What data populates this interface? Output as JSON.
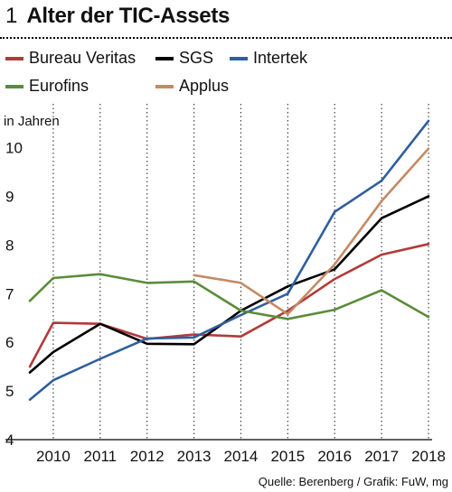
{
  "header": {
    "number": "1",
    "title": "Alter der TIC-Assets"
  },
  "footer": {
    "source": "Quelle: Berenberg / Grafik: FuW, mg"
  },
  "chart_data": {
    "type": "line",
    "ylabel": "in Jahren",
    "xlabel": "",
    "x": [
      2009.5,
      2010,
      2011,
      2012,
      2013,
      2014,
      2015,
      2016,
      2017,
      2018
    ],
    "xticks": [
      "2010",
      "2011",
      "2012",
      "2013",
      "2014",
      "2015",
      "2016",
      "2017",
      "2018"
    ],
    "yticks": [
      "4",
      "5",
      "6",
      "7",
      "8",
      "9",
      "10"
    ],
    "ylim": [
      4,
      10.9
    ],
    "grid": "vertical dotted",
    "legend_position": "top",
    "series": [
      {
        "name": "Bureau Veritas",
        "color": "#b23a3a",
        "values": [
          5.5,
          6.4,
          6.38,
          6.07,
          6.16,
          6.12,
          6.65,
          7.3,
          7.8,
          8.02
        ]
      },
      {
        "name": "SGS",
        "color": "#000000",
        "values": [
          5.38,
          5.8,
          6.38,
          5.97,
          5.96,
          6.65,
          7.15,
          7.5,
          8.55,
          9.0
        ]
      },
      {
        "name": "Intertek",
        "color": "#2f5f9e",
        "values": [
          4.82,
          5.22,
          5.66,
          6.08,
          6.1,
          6.56,
          7.0,
          8.68,
          9.32,
          10.55
        ]
      },
      {
        "name": "Eurofins",
        "color": "#5b8c3a",
        "values": [
          6.85,
          7.32,
          7.4,
          7.22,
          7.25,
          6.65,
          6.48,
          6.67,
          7.07,
          6.52
        ]
      },
      {
        "name": "Applus",
        "color": "#c48a64",
        "values": [
          null,
          null,
          null,
          null,
          7.38,
          7.22,
          6.58,
          7.6,
          8.9,
          9.98
        ]
      }
    ]
  }
}
